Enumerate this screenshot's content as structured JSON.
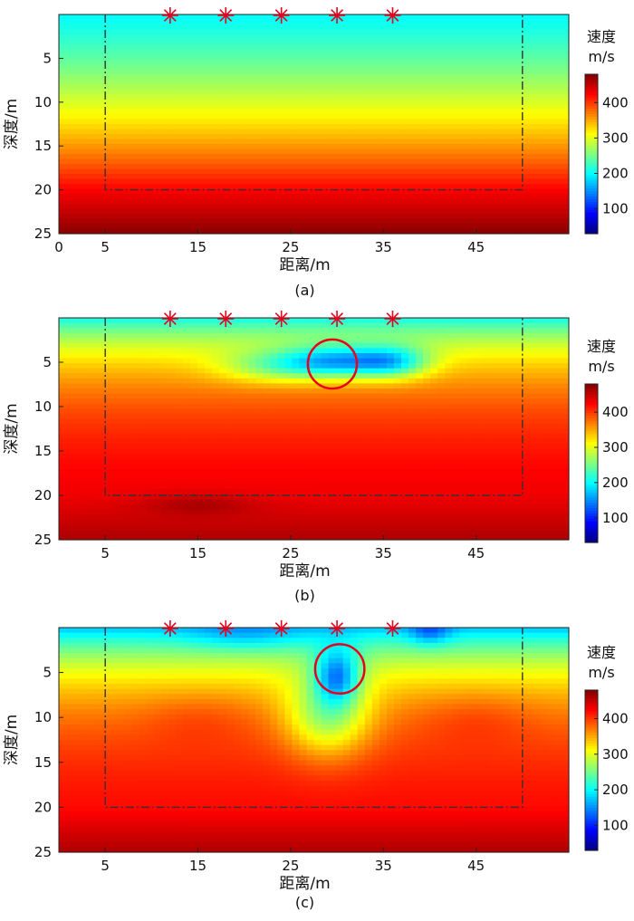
{
  "chart_data": [
    {
      "type": "heatmap",
      "panel": "a",
      "caption": "(a)",
      "xlabel": "距离/m",
      "ylabel": "深度/m",
      "xlim": [
        0,
        55
      ],
      "ylim": [
        0,
        25
      ],
      "xticks": [
        0,
        5,
        15,
        25,
        35,
        45
      ],
      "yticks": [
        5,
        10,
        15,
        20,
        25
      ],
      "colorbar": {
        "title_line1": "速度",
        "title_line2": "m/s",
        "ticks": [
          100,
          200,
          300,
          400
        ],
        "range": [
          30,
          480
        ]
      },
      "sources": [
        12,
        18,
        24,
        30,
        36
      ],
      "survey_box": {
        "x0": 5,
        "x1": 50,
        "y0": 0,
        "y1": 20
      },
      "model": {
        "type": "layered",
        "surface_velocity": 200,
        "velocity_at_20m": 425,
        "velocity_at_25m": 475
      },
      "anomalies": [],
      "circle": null
    },
    {
      "type": "heatmap",
      "panel": "b",
      "caption": "(b)",
      "xlabel": "距离/m",
      "ylabel": "深度/m",
      "xlim": [
        0,
        55
      ],
      "ylim": [
        0,
        25
      ],
      "xticks": [
        5,
        15,
        25,
        35,
        45
      ],
      "yticks": [
        5,
        10,
        15,
        20,
        25
      ],
      "colorbar": {
        "title_line1": "速度",
        "title_line2": "m/s",
        "ticks": [
          100,
          200,
          300,
          400
        ],
        "range": [
          30,
          480
        ]
      },
      "sources": [
        12,
        18,
        24,
        30,
        36
      ],
      "survey_box": {
        "x0": 5,
        "x1": 50,
        "y0": 0,
        "y1": 20
      },
      "model": {
        "type": "inverted",
        "surface_velocity": 205,
        "velocity_at_20m": 430,
        "velocity_at_25m": 460
      },
      "anomalies": [
        {
          "x": 30,
          "y": 5,
          "delta": -150,
          "sx": 6,
          "sy": 1.8
        },
        {
          "x": 36,
          "y": 5,
          "delta": -115,
          "sx": 4,
          "sy": 1.8
        },
        {
          "x": 23,
          "y": 5.5,
          "delta": -70,
          "sx": 6,
          "sy": 1.8
        },
        {
          "x": 15,
          "y": 21,
          "delta": 25,
          "sx": 6,
          "sy": 1.2
        }
      ],
      "circle": {
        "x": 29.5,
        "y": 5.2,
        "r": 2.7
      }
    },
    {
      "type": "heatmap",
      "panel": "c",
      "caption": "(c)",
      "xlabel": "距离/m",
      "ylabel": "深度/m",
      "xlim": [
        0,
        55
      ],
      "ylim": [
        0,
        25
      ],
      "xticks": [
        5,
        15,
        25,
        35,
        45
      ],
      "yticks": [
        5,
        10,
        15,
        20,
        25
      ],
      "colorbar": {
        "title_line1": "速度",
        "title_line2": "m/s",
        "ticks": [
          100,
          200,
          300,
          400
        ],
        "range": [
          30,
          480
        ]
      },
      "sources": [
        12,
        18,
        24,
        30,
        36
      ],
      "survey_box": {
        "x0": 5,
        "x1": 50,
        "y0": 0,
        "y1": 20
      },
      "model": {
        "type": "inverted",
        "surface_velocity": 170,
        "velocity_at_20m": 420,
        "velocity_at_25m": 460
      },
      "anomalies": [
        {
          "x": 30,
          "y": 5.5,
          "delta": -140,
          "sx": 2.4,
          "sy": 3.0
        },
        {
          "x": 29,
          "y": 10,
          "delta": -110,
          "sx": 4.5,
          "sy": 4.5
        },
        {
          "x": 45,
          "y": 10,
          "delta": 20,
          "sx": 6,
          "sy": 3
        },
        {
          "x": 15,
          "y": 10,
          "delta": 18,
          "sx": 6,
          "sy": 3
        },
        {
          "x": 40,
          "y": 0.5,
          "delta": -60,
          "sx": 2.2,
          "sy": 1.5
        },
        {
          "x": 20,
          "y": 1,
          "delta": -35,
          "sx": 6,
          "sy": 1.6
        }
      ],
      "circle": {
        "x": 30.3,
        "y": 4.6,
        "r": 2.7
      }
    }
  ]
}
